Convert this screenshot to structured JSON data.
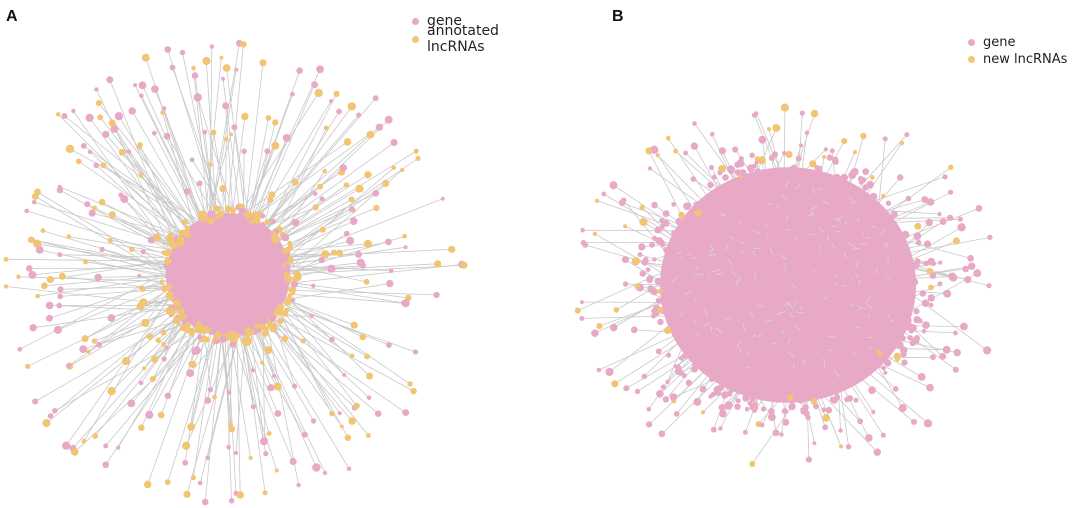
{
  "colors": {
    "gene": "#e8a9c7",
    "lncrna": "#f2c575",
    "edge": "#c9c9c9"
  },
  "panels": [
    {
      "letter": "A",
      "legend": [
        {
          "label": "gene",
          "color": "#e8a9c7"
        },
        {
          "label": "annotated lncRNAs",
          "color": "#f2c575"
        }
      ]
    },
    {
      "letter": "B",
      "legend": [
        {
          "label": "gene",
          "color": "#e8a9c7"
        },
        {
          "label": "new lncRNAs",
          "color": "#f2c575"
        }
      ]
    }
  ]
}
